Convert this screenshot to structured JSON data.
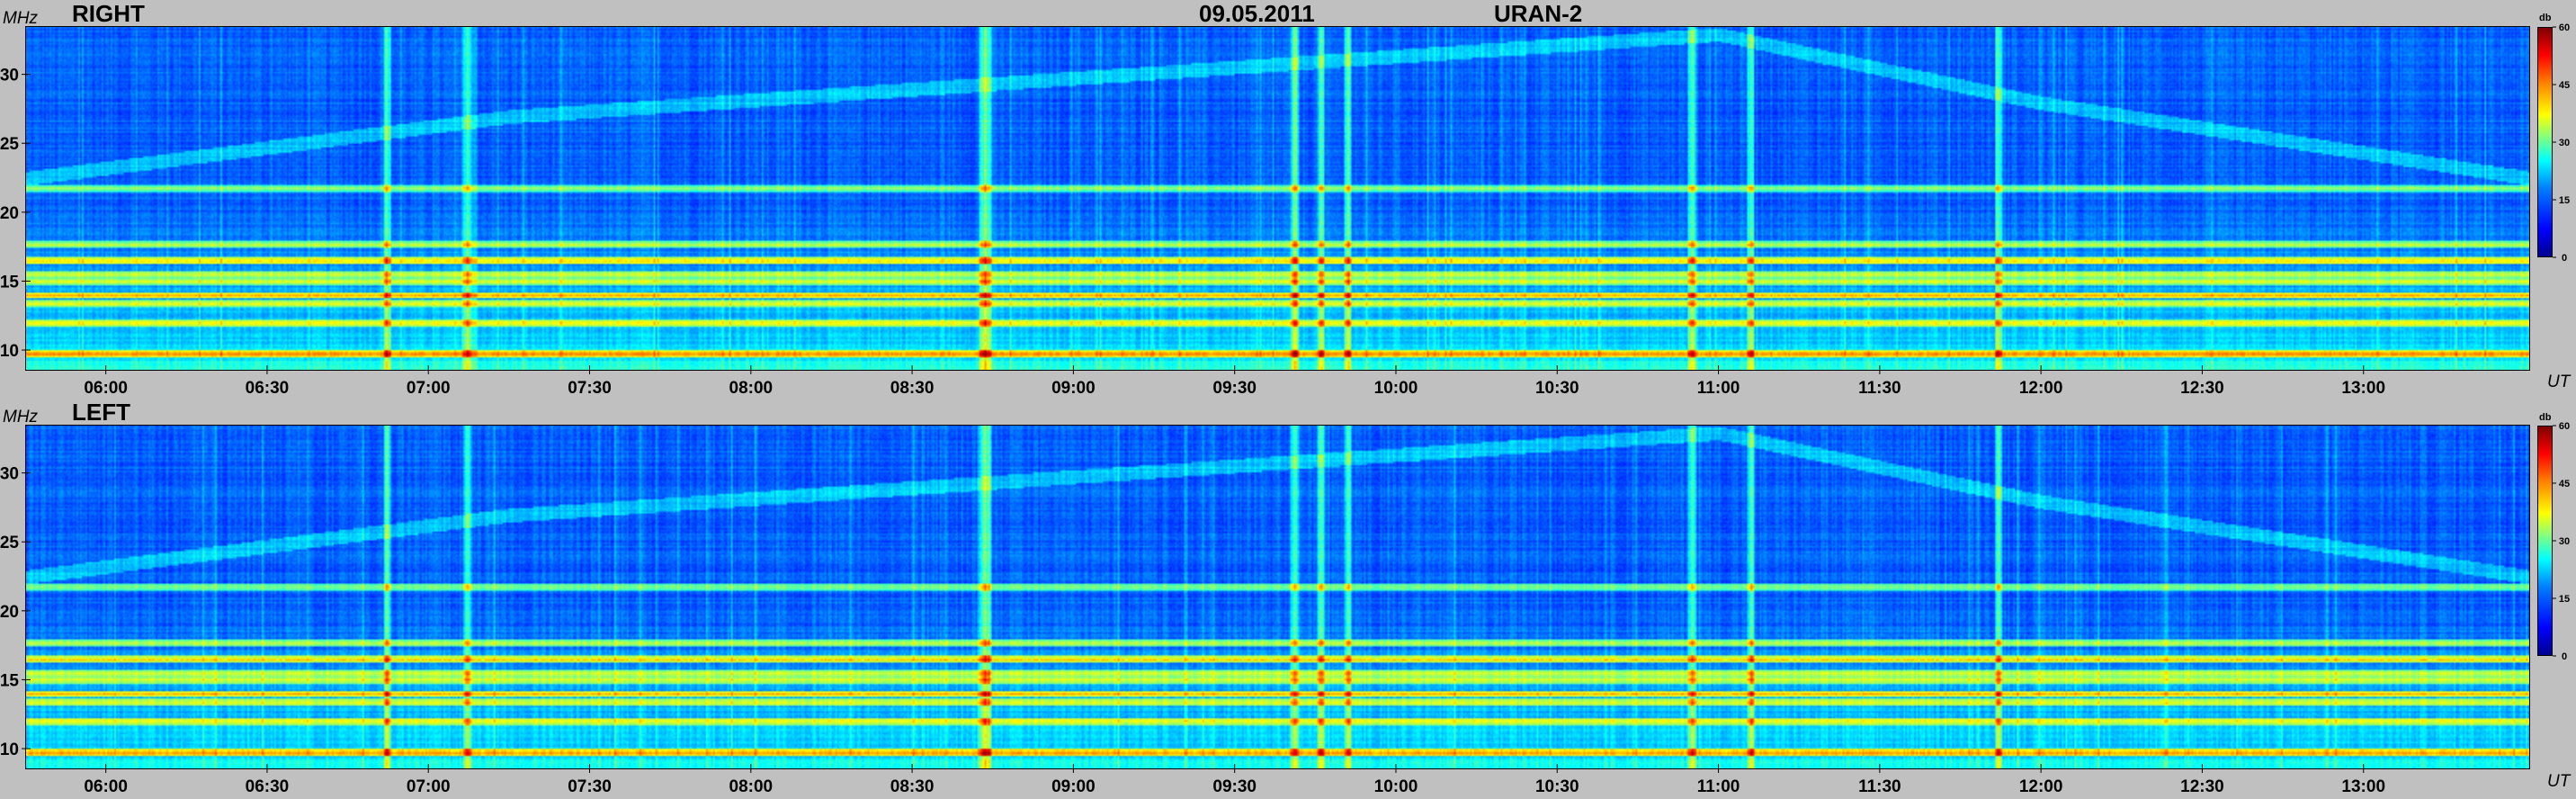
{
  "header": {
    "date": "09.05.2011",
    "instrument": "URAN-2"
  },
  "colorbar": {
    "unit": "db",
    "ticks": [
      "0",
      "15",
      "30",
      "45",
      "60"
    ]
  },
  "axes": {
    "y_unit": "MHz",
    "x_unit": "UT"
  },
  "chart_data": [
    {
      "type": "heatmap",
      "title": "RIGHT",
      "x_range": [
        "05:45",
        "13:31"
      ],
      "y_range_mhz": [
        8.5,
        33.5
      ],
      "xticks": [
        "06:00",
        "06:30",
        "07:00",
        "07:30",
        "08:00",
        "08:30",
        "09:00",
        "09:30",
        "10:00",
        "10:30",
        "11:00",
        "11:30",
        "12:00",
        "12:30",
        "13:00"
      ],
      "yticks": [
        10,
        15,
        20,
        25,
        30
      ],
      "color_range_db": [
        0,
        60
      ],
      "interference_bands_mhz": [
        9.7,
        12.0,
        13.4,
        14.0,
        15.0,
        15.5,
        16.5,
        17.7,
        21.8
      ],
      "burst_times": [
        "06:52",
        "07:07",
        "08:43",
        "08:44",
        "09:41",
        "09:46",
        "09:51",
        "10:55",
        "11:06",
        "11:52"
      ],
      "drifting_feature": [
        {
          "time": "05:45",
          "freq_mhz": 22.5
        },
        {
          "time": "07:15",
          "freq_mhz": 27.0
        },
        {
          "time": "11:00",
          "freq_mhz": 33.0
        },
        {
          "time": "12:00",
          "freq_mhz": 28.0
        },
        {
          "time": "13:31",
          "freq_mhz": 22.5
        }
      ]
    },
    {
      "type": "heatmap",
      "title": "LEFT",
      "x_range": [
        "05:45",
        "13:31"
      ],
      "y_range_mhz": [
        8.5,
        33.5
      ],
      "xticks": [
        "06:00",
        "06:30",
        "07:00",
        "07:30",
        "08:00",
        "08:30",
        "09:00",
        "09:30",
        "10:00",
        "10:30",
        "11:00",
        "11:30",
        "12:00",
        "12:30",
        "13:00"
      ],
      "yticks": [
        10,
        15,
        20,
        25,
        30
      ],
      "color_range_db": [
        0,
        60
      ],
      "interference_bands_mhz": [
        9.7,
        12.0,
        13.4,
        14.0,
        15.0,
        15.5,
        16.5,
        17.7,
        21.8
      ],
      "burst_times": [
        "06:52",
        "07:07",
        "08:43",
        "08:44",
        "09:41",
        "09:46",
        "09:51",
        "10:55",
        "11:06",
        "11:52"
      ],
      "drifting_feature": [
        {
          "time": "05:45",
          "freq_mhz": 22.5
        },
        {
          "time": "07:15",
          "freq_mhz": 27.0
        },
        {
          "time": "11:00",
          "freq_mhz": 33.0
        },
        {
          "time": "12:00",
          "freq_mhz": 28.0
        },
        {
          "time": "13:31",
          "freq_mhz": 22.5
        }
      ]
    }
  ]
}
